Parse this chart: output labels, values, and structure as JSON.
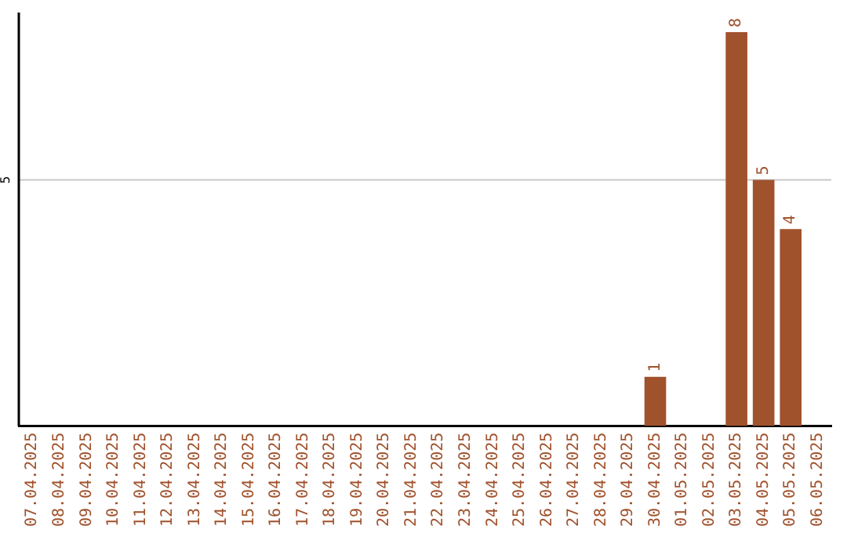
{
  "chart_data": {
    "type": "bar",
    "categories": [
      "07.04.2025",
      "08.04.2025",
      "09.04.2025",
      "10.04.2025",
      "11.04.2025",
      "12.04.2025",
      "13.04.2025",
      "14.04.2025",
      "15.04.2025",
      "16.04.2025",
      "17.04.2025",
      "18.04.2025",
      "19.04.2025",
      "20.04.2025",
      "21.04.2025",
      "22.04.2025",
      "23.04.2025",
      "24.04.2025",
      "25.04.2025",
      "26.04.2025",
      "27.04.2025",
      "28.04.2025",
      "29.04.2025",
      "30.04.2025",
      "01.05.2025",
      "02.05.2025",
      "03.05.2025",
      "04.05.2025",
      "05.05.2025",
      "06.05.2025"
    ],
    "values": [
      null,
      null,
      null,
      null,
      null,
      null,
      null,
      null,
      null,
      null,
      null,
      null,
      null,
      null,
      null,
      null,
      null,
      null,
      null,
      null,
      null,
      null,
      null,
      1,
      null,
      null,
      8,
      5,
      4,
      null
    ],
    "data_labels": true,
    "color": "#a0522d",
    "ylim": [
      0,
      8.4
    ],
    "ref_lines": [
      {
        "axis": "y",
        "value": 5,
        "label": "5",
        "color": "#c8c8c8"
      }
    ],
    "legend": false
  }
}
